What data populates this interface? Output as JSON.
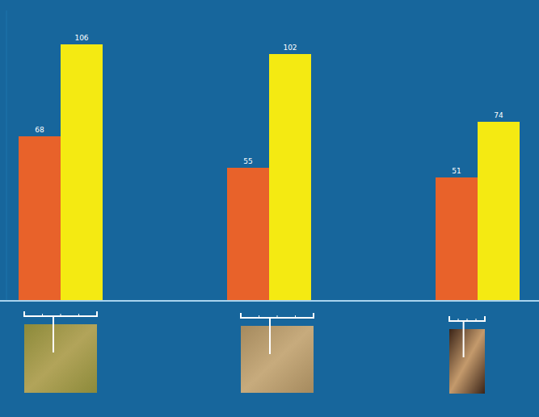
{
  "chart_data": {
    "type": "bar",
    "categories": [
      null,
      null,
      null
    ],
    "series": [
      {
        "color": "#e8622a",
        "values": [
          68,
          55,
          51
        ]
      },
      {
        "color": "#f4ea12",
        "values": [
          106,
          102,
          74
        ]
      }
    ],
    "ylim": [
      0,
      120
    ],
    "tick_labels": false,
    "grid": false,
    "data_labels": true
  }
}
